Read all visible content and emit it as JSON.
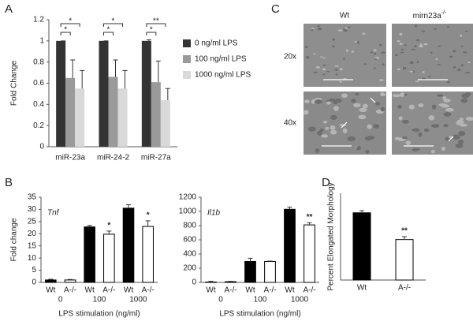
{
  "panel_labels": [
    "A",
    "B",
    "C",
    "D"
  ],
  "chart_data": [
    {
      "type": "bar",
      "y_label": "Fold Change",
      "categories": [
        "miR-23a",
        "miR-24-2",
        "miR-27a"
      ],
      "series": [
        {
          "name": "0 ng/ml LPS",
          "color": "#333333",
          "values": [
            1,
            1,
            1
          ],
          "errors": [
            0,
            0,
            0.01
          ]
        },
        {
          "name": "100 ng/ml LPS",
          "color": "#9a9a9a",
          "values": [
            0.65,
            0.66,
            0.61
          ],
          "errors": [
            0.17,
            0.16,
            0.2
          ]
        },
        {
          "name": "1000 ng/ml LPS",
          "color": "#d9d9d9",
          "values": [
            0.55,
            0.55,
            0.44
          ],
          "errors": [
            0.17,
            0.17,
            0.11
          ]
        }
      ],
      "significance": [
        [
          "*",
          "*"
        ],
        [
          "*",
          "*"
        ],
        [
          "**",
          "*"
        ]
      ],
      "ylim": [
        0,
        1.2
      ],
      "yticks": [
        0,
        0.2,
        0.4,
        0.6,
        0.8,
        1,
        1.2
      ]
    },
    {
      "type": "bar",
      "title": "Tnf",
      "y_label": "Fold change",
      "x_label": "LPS stimulation (ng/ml)",
      "categories": [
        "Wt",
        "A-/-",
        "Wt",
        "A-/-",
        "Wt",
        "A-/-"
      ],
      "groups": [
        "0",
        "100",
        "1000"
      ],
      "values": [
        1,
        1,
        22.8,
        19.8,
        30.5,
        23
      ],
      "errors": [
        0.3,
        0.2,
        0.6,
        1.3,
        1.4,
        2.3
      ],
      "colors": [
        "#000000",
        "#ffffff",
        "#000000",
        "#ffffff",
        "#000000",
        "#ffffff"
      ],
      "annotations": [
        null,
        null,
        null,
        "*",
        null,
        "*"
      ],
      "ylim": [
        0,
        35
      ],
      "yticks": [
        0,
        5,
        10,
        15,
        20,
        25,
        30,
        35
      ]
    },
    {
      "type": "bar",
      "title": "Il1b",
      "x_label": "LPS stimulation (ng/ml)",
      "categories": [
        "Wt",
        "A-/-",
        "Wt",
        "A-/-",
        "Wt",
        "A-/-"
      ],
      "groups": [
        "0",
        "100",
        "1000"
      ],
      "values": [
        5,
        10,
        295,
        295,
        1030,
        810
      ],
      "errors": [
        10,
        5,
        45,
        5,
        30,
        30
      ],
      "colors": [
        "#000000",
        "#ffffff",
        "#000000",
        "#ffffff",
        "#000000",
        "#ffffff"
      ],
      "annotations": [
        null,
        null,
        null,
        null,
        null,
        "**"
      ],
      "ylim": [
        0,
        1200
      ],
      "yticks": [
        0,
        200,
        400,
        600,
        800,
        1000,
        1200
      ]
    },
    {
      "type": "bar",
      "y_label": "Percent Elongated Morphology",
      "categories": [
        "Wt",
        "A-/-"
      ],
      "values": [
        46.5,
        28
      ],
      "errors": [
        1.5,
        2
      ],
      "colors": [
        "#000000",
        "#ffffff"
      ],
      "annotations": [
        null,
        "**"
      ],
      "ylim": [
        0,
        60
      ]
    }
  ],
  "images": {
    "columns": [
      {
        "text": "Wt"
      },
      {
        "text": "mirn23a",
        "sup": "-/-"
      }
    ],
    "rows": [
      "20x",
      "40x"
    ]
  }
}
